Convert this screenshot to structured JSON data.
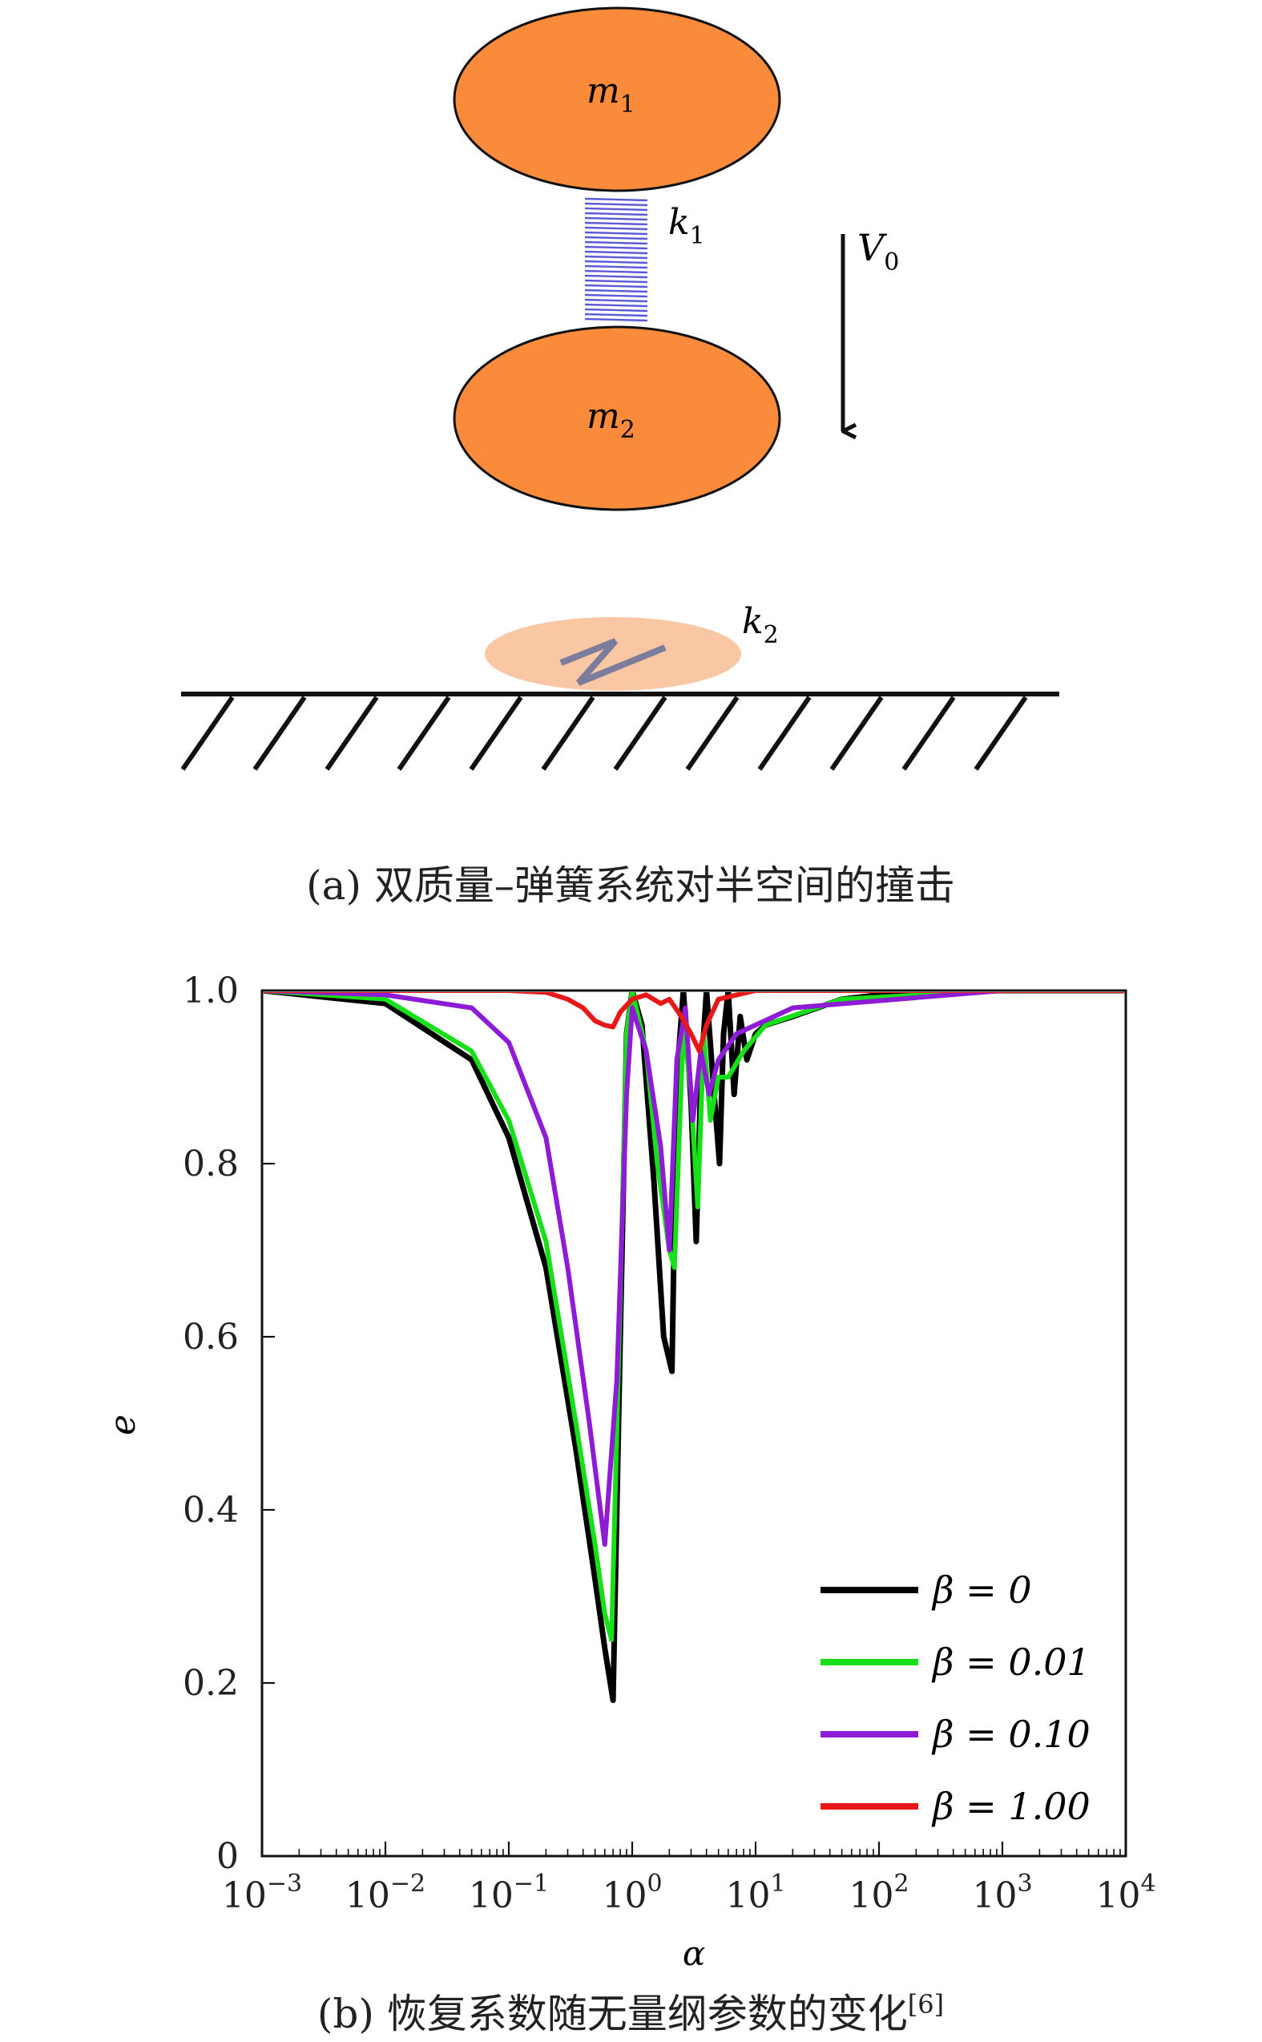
{
  "panel_a": {
    "mass_top_label": "m",
    "mass_top_sub": "1",
    "mass_bottom_label": "m",
    "mass_bottom_sub": "2",
    "spring_top_label": "k",
    "spring_top_sub": "1",
    "spring_ground_label": "k",
    "spring_ground_sub": "2",
    "velocity_label": "V",
    "velocity_sub": "0",
    "caption": "(a) 双质量–弹簧系统对半空间的撞击",
    "colors": {
      "mass_fill": "#F98B3B",
      "spring": "#5B5BD9",
      "contact_fill": "#F9C7A3"
    }
  },
  "panel_b": {
    "caption": "(b) 恢复系数随无量纲参数的变化",
    "caption_ref": "[6]",
    "chart_data": {
      "type": "line",
      "title": "",
      "xlabel": "α",
      "ylabel": "e",
      "xscale": "log",
      "xlim": [
        0.001,
        10000
      ],
      "ylim": [
        0,
        1
      ],
      "x_ticks": [
        {
          "base": "10",
          "exp": "−3"
        },
        {
          "base": "10",
          "exp": "−2"
        },
        {
          "base": "10",
          "exp": "−1"
        },
        {
          "base": "10",
          "exp": "0"
        },
        {
          "base": "10",
          "exp": "1"
        },
        {
          "base": "10",
          "exp": "2"
        },
        {
          "base": "10",
          "exp": "3"
        },
        {
          "base": "10",
          "exp": "4"
        }
      ],
      "y_ticks": [
        "0",
        "0.2",
        "0.4",
        "0.6",
        "0.8",
        "1.0"
      ],
      "grid": false,
      "legend_position": "bottom-right",
      "series": [
        {
          "name": "β = 0",
          "color": "#000000",
          "x": [
            0.001,
            0.01,
            0.05,
            0.1,
            0.2,
            0.35,
            0.5,
            0.6,
            0.7,
            0.8,
            0.9,
            1.0,
            1.2,
            1.5,
            1.8,
            2.1,
            2.3,
            2.6,
            3.0,
            3.3,
            3.6,
            4.0,
            4.5,
            5.1,
            5.5,
            6.0,
            6.7,
            7.5,
            8.5,
            10,
            12,
            20,
            50,
            100,
            1000,
            10000
          ],
          "y": [
            1.0,
            0.985,
            0.92,
            0.83,
            0.68,
            0.47,
            0.32,
            0.24,
            0.18,
            0.6,
            0.95,
            1.0,
            0.96,
            0.78,
            0.6,
            0.56,
            0.9,
            1.0,
            0.87,
            0.71,
            0.9,
            1.0,
            0.9,
            0.8,
            0.95,
            1.0,
            0.88,
            0.97,
            0.92,
            0.95,
            0.96,
            0.97,
            0.99,
            0.995,
            1.0,
            1.0
          ]
        },
        {
          "name": "β = 0.01",
          "color": "#18E018",
          "x": [
            0.001,
            0.01,
            0.05,
            0.1,
            0.2,
            0.35,
            0.5,
            0.6,
            0.68,
            0.8,
            0.9,
            1.0,
            1.3,
            1.6,
            2.0,
            2.2,
            2.6,
            3.0,
            3.4,
            3.8,
            4.3,
            5.0,
            6.0,
            8.0,
            12,
            50,
            1000,
            10000
          ],
          "y": [
            1.0,
            0.99,
            0.93,
            0.85,
            0.71,
            0.5,
            0.36,
            0.28,
            0.25,
            0.65,
            0.95,
            1.0,
            0.93,
            0.8,
            0.7,
            0.68,
            0.96,
            0.88,
            0.75,
            0.95,
            0.85,
            0.9,
            0.9,
            0.93,
            0.96,
            0.99,
            1.0,
            1.0
          ]
        },
        {
          "name": "β = 0.10",
          "color": "#8E1BD6",
          "x": [
            0.001,
            0.01,
            0.05,
            0.1,
            0.2,
            0.3,
            0.45,
            0.6,
            0.75,
            0.9,
            1.0,
            1.3,
            1.7,
            2.0,
            2.3,
            2.7,
            3.1,
            3.6,
            4.2,
            5.0,
            7.0,
            20,
            1000,
            10000
          ],
          "y": [
            1.0,
            0.995,
            0.98,
            0.94,
            0.83,
            0.68,
            0.5,
            0.36,
            0.55,
            0.88,
            0.98,
            0.93,
            0.82,
            0.7,
            0.92,
            0.98,
            0.85,
            0.93,
            0.88,
            0.92,
            0.95,
            0.98,
            1.0,
            1.0
          ]
        },
        {
          "name": "β = 1.00",
          "color": "#E81818",
          "x": [
            0.001,
            0.01,
            0.1,
            0.2,
            0.3,
            0.4,
            0.5,
            0.6,
            0.7,
            0.8,
            1.0,
            1.3,
            1.7,
            2.0,
            2.5,
            3.0,
            3.5,
            4.0,
            5.0,
            10,
            10000
          ],
          "y": [
            1.0,
            1.0,
            1.0,
            0.998,
            0.99,
            0.98,
            0.965,
            0.96,
            0.958,
            0.975,
            0.99,
            0.995,
            0.985,
            0.99,
            0.97,
            0.95,
            0.93,
            0.96,
            0.99,
            1.0,
            1.0
          ]
        }
      ]
    }
  }
}
